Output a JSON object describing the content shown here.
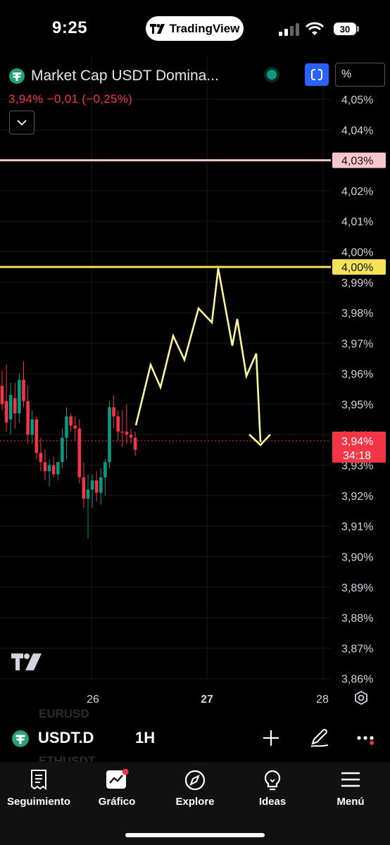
{
  "status_bar": {
    "time": "9:25",
    "app_pill": "TradingView",
    "battery": "30"
  },
  "header": {
    "title": "Market Cap USDT Domina...",
    "change": "3,94%  −0,01 (−0,25%)",
    "scale_button": "%"
  },
  "chart": {
    "price_labels": [
      "4,05%",
      "4,04%",
      "4,03%",
      "4,02%",
      "4,01%",
      "4,00%",
      "3,99%",
      "3,98%",
      "3,97%",
      "3,96%",
      "3,95%",
      "3,94%",
      "3,93%",
      "3,92%",
      "3,91%",
      "3,90%",
      "3,89%",
      "3,88%",
      "3,87%",
      "3,86%"
    ],
    "date_labels": [
      "26",
      "27",
      "28"
    ],
    "pink_line_label": "4,03%",
    "yellow_line_label": "4,00%",
    "current_price_label": "3,94%",
    "countdown": "34:18",
    "colors": {
      "up": "#089981",
      "down": "#f23645",
      "pink_line": "#f6c6cb",
      "yellow_line": "#f5e35a",
      "sketch": "#fbf59b",
      "price_tag": "#f23645"
    }
  },
  "symbol_bar": {
    "symbol": "USDT.D",
    "interval": "1H",
    "ghost_top": "EURUSD",
    "ghost_bottom": "ETHUSDT",
    "icons": [
      "add-icon",
      "draw-pen-icon",
      "more-icon"
    ]
  },
  "tabs": [
    {
      "label": "Seguimiento",
      "icon": "watchlist-icon"
    },
    {
      "label": "Gráfico",
      "icon": "chart-icon"
    },
    {
      "label": "Explore",
      "icon": "compass-icon"
    },
    {
      "label": "Ideas",
      "icon": "lightbulb-icon"
    },
    {
      "label": "Menú",
      "icon": "menu-icon"
    }
  ]
}
